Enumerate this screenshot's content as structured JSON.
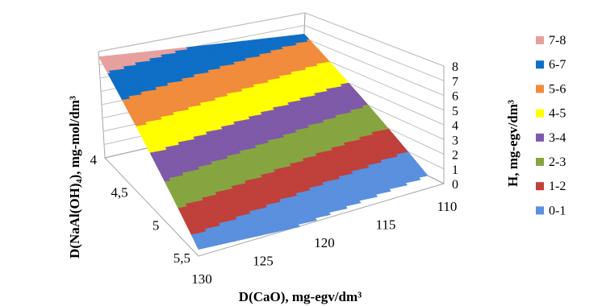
{
  "chart_data": {
    "type": "surface",
    "xlabel": "D(CaO), mg-egv/dm³",
    "ylabel": "D(NaAl(OH)₄), mg-mol/dm³",
    "zlabel": "H, mg-egv/dm³",
    "x_ticks": [
      "130",
      "125",
      "120",
      "115",
      "110"
    ],
    "y_ticks": [
      "4",
      "4,5",
      "5",
      "5,5"
    ],
    "z_ticks": [
      "0",
      "1",
      "2",
      "3",
      "4",
      "5",
      "6",
      "7",
      "8"
    ],
    "x_range": [
      110,
      130
    ],
    "y_range": [
      4,
      5.5
    ],
    "zlim": [
      0,
      8
    ],
    "surface": {
      "x": [
        130,
        110
      ],
      "y": [
        4,
        5.5
      ],
      "z_at_x130": [
        7.6,
        0.5
      ],
      "z_at_x110": [
        6.3,
        -0.8
      ]
    },
    "legend_position": "right",
    "legend": [
      {
        "label": "7-8",
        "color": "#e6a19f"
      },
      {
        "label": "6-7",
        "color": "#0f6fc6"
      },
      {
        "label": "5-6",
        "color": "#f08c3c"
      },
      {
        "label": "4-5",
        "color": "#ffff00"
      },
      {
        "label": "3-4",
        "color": "#7f5aa8"
      },
      {
        "label": "2-3",
        "color": "#86a540"
      },
      {
        "label": "1-2",
        "color": "#c0403c"
      },
      {
        "label": "0-1",
        "color": "#5a90de"
      }
    ]
  }
}
